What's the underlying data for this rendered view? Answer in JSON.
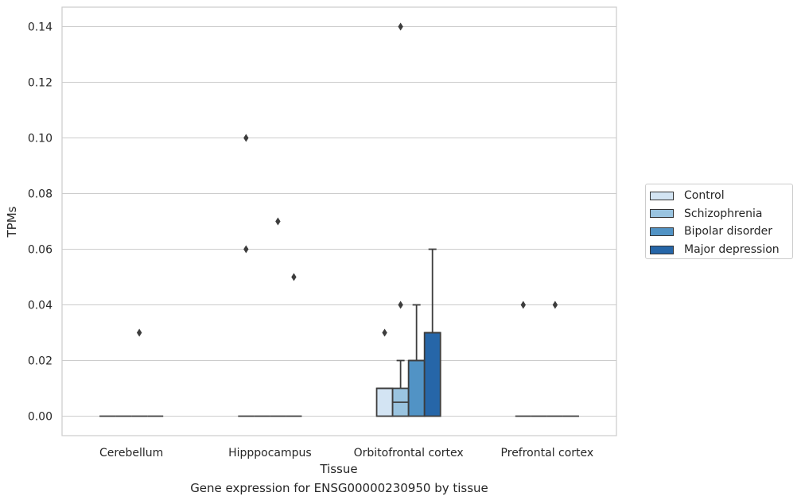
{
  "chart_data": {
    "type": "box",
    "caption": "Gene expression for ENSG00000230950 by tissue",
    "xlabel": "Tissue",
    "ylabel": "TPMs",
    "ylim": [
      -0.007,
      0.147
    ],
    "yticks": [
      0.0,
      0.02,
      0.04,
      0.06,
      0.08,
      0.1,
      0.12,
      0.14
    ],
    "ytick_labels": [
      "0.00",
      "0.02",
      "0.04",
      "0.06",
      "0.08",
      "0.10",
      "0.12",
      "0.14"
    ],
    "grid": true,
    "legend_placement": "right",
    "categories": [
      "Cerebellum",
      "Hipppocampus",
      "Orbitofrontal cortex",
      "Prefrontal cortex"
    ],
    "series": [
      {
        "name": "Control",
        "color": "#d3e4f3",
        "boxes": [
          {
            "q1": 0,
            "median": 0,
            "q3": 0,
            "whislo": 0,
            "whishi": 0,
            "fliers": []
          },
          {
            "q1": 0,
            "median": 0,
            "q3": 0,
            "whislo": 0,
            "whishi": 0,
            "fliers": [
              0.06,
              0.1
            ]
          },
          {
            "q1": 0,
            "median": 0.01,
            "q3": 0.01,
            "whislo": 0,
            "whishi": 0.01,
            "fliers": [
              0.03
            ]
          },
          {
            "q1": 0,
            "median": 0,
            "q3": 0,
            "whislo": 0,
            "whishi": 0,
            "fliers": [
              0.04
            ]
          }
        ]
      },
      {
        "name": "Schizophrenia",
        "color": "#9ac4e0",
        "boxes": [
          {
            "q1": 0,
            "median": 0,
            "q3": 0,
            "whislo": 0,
            "whishi": 0,
            "fliers": []
          },
          {
            "q1": 0,
            "median": 0,
            "q3": 0,
            "whislo": 0,
            "whishi": 0,
            "fliers": []
          },
          {
            "q1": 0,
            "median": 0.005,
            "q3": 0.01,
            "whislo": 0,
            "whishi": 0.02,
            "fliers": [
              0.04,
              0.14
            ]
          },
          {
            "q1": 0,
            "median": 0,
            "q3": 0,
            "whislo": 0,
            "whishi": 0,
            "fliers": []
          }
        ]
      },
      {
        "name": "Bipolar disorder",
        "color": "#5193c5",
        "boxes": [
          {
            "q1": 0,
            "median": 0,
            "q3": 0,
            "whislo": 0,
            "whishi": 0,
            "fliers": [
              0.03
            ]
          },
          {
            "q1": 0,
            "median": 0,
            "q3": 0,
            "whislo": 0,
            "whishi": 0,
            "fliers": [
              0.07
            ]
          },
          {
            "q1": 0,
            "median": 0.02,
            "q3": 0.02,
            "whislo": 0,
            "whishi": 0.04,
            "fliers": []
          },
          {
            "q1": 0,
            "median": 0,
            "q3": 0,
            "whislo": 0,
            "whishi": 0,
            "fliers": [
              0.04
            ]
          }
        ]
      },
      {
        "name": "Major depression",
        "color": "#2666a8",
        "boxes": [
          {
            "q1": 0,
            "median": 0,
            "q3": 0,
            "whislo": 0,
            "whishi": 0,
            "fliers": []
          },
          {
            "q1": 0,
            "median": 0,
            "q3": 0,
            "whislo": 0,
            "whishi": 0,
            "fliers": [
              0.05
            ]
          },
          {
            "q1": 0,
            "median": 0.03,
            "q3": 0.03,
            "whislo": 0,
            "whishi": 0.06,
            "fliers": []
          },
          {
            "q1": 0,
            "median": 0,
            "q3": 0,
            "whislo": 0,
            "whishi": 0,
            "fliers": []
          }
        ]
      }
    ]
  }
}
